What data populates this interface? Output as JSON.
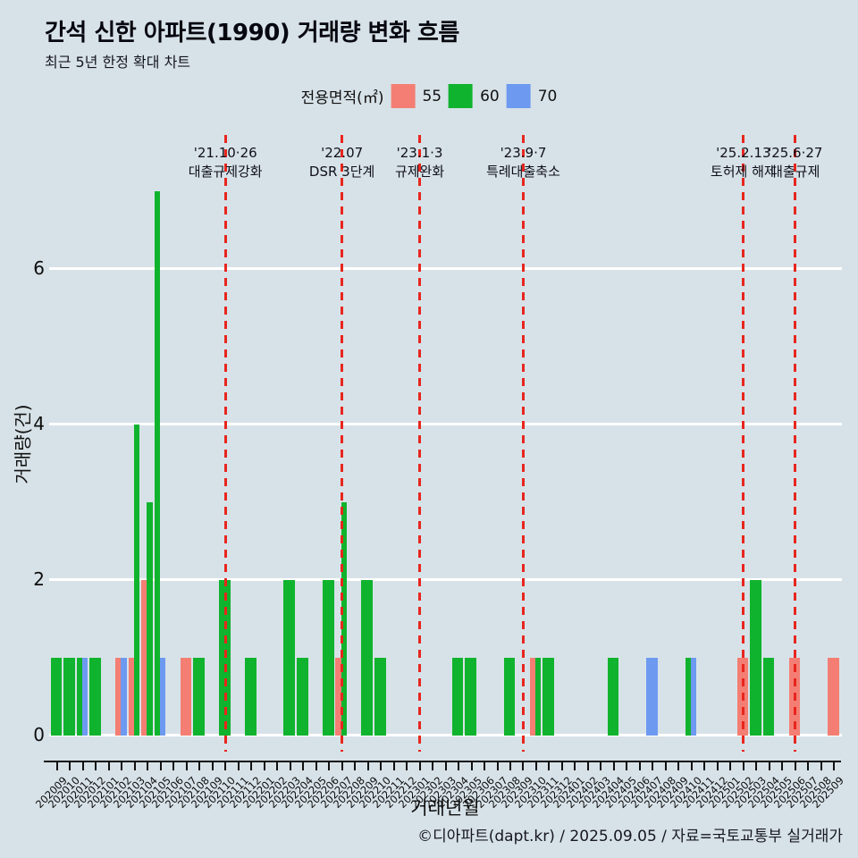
{
  "header": {
    "title": "간석 신한 아파트(1990) 거래량 변화 흐름",
    "subtitle": "최근 5년 한정 확대 차트"
  },
  "legend": {
    "label": "전용면적(㎡)",
    "items": [
      {
        "label": "55",
        "color": "#f47e73"
      },
      {
        "label": "60",
        "color": "#10b32d"
      },
      {
        "label": "70",
        "color": "#6d9af0"
      }
    ]
  },
  "chart_data": {
    "type": "bar",
    "title": "간석 신한 아파트(1990) 거래량 변화 흐름",
    "xlabel": "거래년월",
    "ylabel": "거래량(건)",
    "yticks": [
      0,
      2,
      4,
      6
    ],
    "ylim": [
      0,
      7.7
    ],
    "grid": "horizontal-white",
    "legend_position": "top-center",
    "categories": [
      "202009",
      "202010",
      "202011",
      "202012",
      "202101",
      "202102",
      "202103",
      "202104",
      "202105",
      "202106",
      "202107",
      "202108",
      "202109",
      "202110",
      "202111",
      "202112",
      "202201",
      "202202",
      "202203",
      "202204",
      "202205",
      "202206",
      "202207",
      "202208",
      "202209",
      "202210",
      "202211",
      "202212",
      "202301",
      "202302",
      "202303",
      "202304",
      "202305",
      "202306",
      "202307",
      "202308",
      "202309",
      "202310",
      "202311",
      "202312",
      "202401",
      "202402",
      "202403",
      "202404",
      "202405",
      "202406",
      "202407",
      "202408",
      "202409",
      "202410",
      "202411",
      "202412",
      "202501",
      "202502",
      "202503",
      "202504",
      "202505",
      "202506",
      "202507",
      "202508",
      "202509"
    ],
    "series": [
      {
        "name": "55",
        "color": "#f47e73",
        "values": [
          0,
          0,
          0,
          0,
          0,
          1,
          1,
          2,
          0,
          0,
          1,
          0,
          0,
          0,
          0,
          0,
          0,
          0,
          0,
          0,
          0,
          0,
          1,
          0,
          0,
          0,
          0,
          0,
          0,
          0,
          0,
          0,
          0,
          0,
          0,
          0,
          0,
          1,
          0,
          0,
          0,
          0,
          0,
          0,
          0,
          0,
          0,
          0,
          0,
          0,
          0,
          0,
          0,
          1,
          0,
          0,
          0,
          1,
          0,
          0,
          1
        ]
      },
      {
        "name": "60",
        "color": "#10b32d",
        "values": [
          1,
          1,
          1,
          1,
          0,
          0,
          4,
          3,
          7,
          0,
          0,
          1,
          0,
          2,
          0,
          1,
          0,
          0,
          2,
          1,
          0,
          2,
          3,
          0,
          2,
          1,
          0,
          0,
          0,
          0,
          0,
          1,
          1,
          0,
          0,
          1,
          0,
          1,
          1,
          0,
          0,
          0,
          0,
          1,
          0,
          0,
          0,
          0,
          0,
          1,
          0,
          0,
          0,
          0,
          2,
          1,
          0,
          0,
          0,
          0,
          0
        ]
      },
      {
        "name": "70",
        "color": "#6d9af0",
        "values": [
          0,
          0,
          1,
          0,
          0,
          1,
          0,
          0,
          1,
          0,
          0,
          0,
          0,
          0,
          0,
          0,
          0,
          0,
          0,
          0,
          0,
          0,
          0,
          0,
          0,
          0,
          0,
          0,
          0,
          0,
          0,
          0,
          0,
          0,
          0,
          0,
          0,
          0,
          0,
          0,
          0,
          0,
          0,
          0,
          0,
          0,
          1,
          0,
          0,
          1,
          0,
          0,
          0,
          0,
          0,
          0,
          0,
          0,
          0,
          0,
          0
        ]
      }
    ],
    "annotations": [
      {
        "month": "202110",
        "date": "'21.10·26",
        "desc": "대출규제강화"
      },
      {
        "month": "202207",
        "date": "'22.07",
        "desc": "DSR 3단계"
      },
      {
        "month": "202301",
        "date": "'23.1·3",
        "desc": "규제완화"
      },
      {
        "month": "202309",
        "date": "'23.9·7",
        "desc": "특례대출축소"
      },
      {
        "month": "202502",
        "date": "'25.2.13",
        "desc": "토허제 해제"
      },
      {
        "month": "202506",
        "date": "'25.6·27",
        "desc": "대출규제"
      }
    ],
    "annotation_line_color": "#e7261e",
    "background_color": "#d7e2e8",
    "gridline_color": "#ffffff"
  },
  "footer": {
    "text": "©디아파트(dapt.kr) / 2025.09.05 / 자료=국토교통부 실거래가"
  }
}
